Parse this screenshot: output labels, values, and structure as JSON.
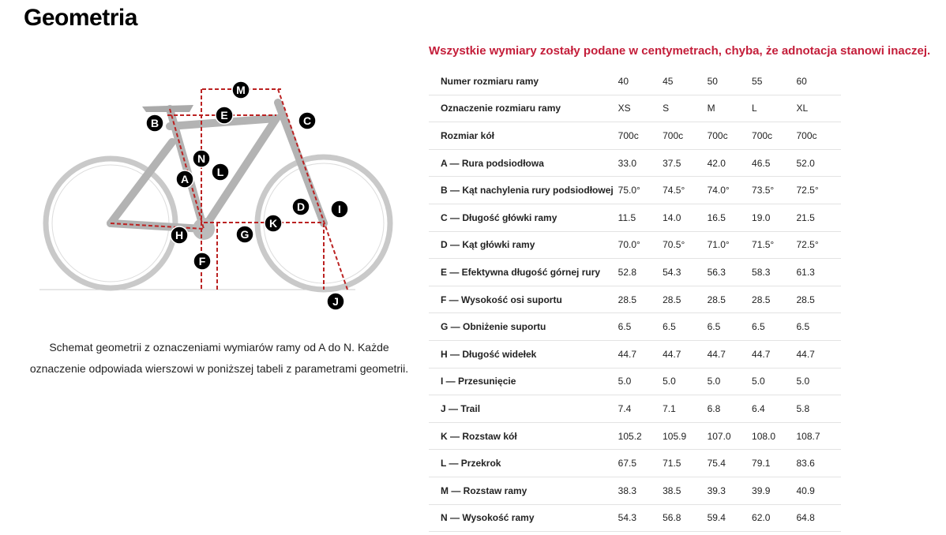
{
  "header": {
    "title": "Geometria"
  },
  "note": "Wszystkie wymiary zostały podane w centymetrach, chyba, że adnotacja stanowi inaczej.",
  "caption": "Schemat geometrii z oznaczeniami wymiarów ramy od A do N. Każde oznaczenie odpowiada wierszowi w poniższej tabeli z parametrami geometrii.",
  "diagram": {
    "labels": [
      "M",
      "E",
      "C",
      "B",
      "N",
      "L",
      "A",
      "D",
      "I",
      "K",
      "H",
      "G",
      "F",
      "J"
    ]
  },
  "table": {
    "rows": [
      [
        "Numer rozmiaru ramy",
        "40",
        "45",
        "50",
        "55",
        "60"
      ],
      [
        "Oznaczenie rozmiaru ramy",
        "XS",
        "S",
        "M",
        "L",
        "XL"
      ],
      [
        "Rozmiar kół",
        "700c",
        "700c",
        "700c",
        "700c",
        "700c"
      ],
      [
        "A — Rura podsiodłowa",
        "33.0",
        "37.5",
        "42.0",
        "46.5",
        "52.0"
      ],
      [
        "B — Kąt nachylenia rury podsiodłowej",
        "75.0°",
        "74.5°",
        "74.0°",
        "73.5°",
        "72.5°"
      ],
      [
        "C — Długość główki ramy",
        "11.5",
        "14.0",
        "16.5",
        "19.0",
        "21.5"
      ],
      [
        "D — Kąt główki ramy",
        "70.0°",
        "70.5°",
        "71.0°",
        "71.5°",
        "72.5°"
      ],
      [
        "E — Efektywna długość górnej rury",
        "52.8",
        "54.3",
        "56.3",
        "58.3",
        "61.3"
      ],
      [
        "F — Wysokość osi suportu",
        "28.5",
        "28.5",
        "28.5",
        "28.5",
        "28.5"
      ],
      [
        "G — Obniżenie suportu",
        "6.5",
        "6.5",
        "6.5",
        "6.5",
        "6.5"
      ],
      [
        "H — Długość widełek",
        "44.7",
        "44.7",
        "44.7",
        "44.7",
        "44.7"
      ],
      [
        "I — Przesunięcie",
        "5.0",
        "5.0",
        "5.0",
        "5.0",
        "5.0"
      ],
      [
        "J — Trail",
        "7.4",
        "7.1",
        "6.8",
        "6.4",
        "5.8"
      ],
      [
        "K — Rozstaw kół",
        "105.2",
        "105.9",
        "107.0",
        "108.0",
        "108.7"
      ],
      [
        "L — Przekrok",
        "67.5",
        "71.5",
        "75.4",
        "79.1",
        "83.6"
      ],
      [
        "M — Rozstaw ramy",
        "38.3",
        "38.5",
        "39.3",
        "39.9",
        "40.9"
      ],
      [
        "N — Wysokość ramy",
        "54.3",
        "56.8",
        "59.4",
        "62.0",
        "64.8"
      ]
    ]
  }
}
